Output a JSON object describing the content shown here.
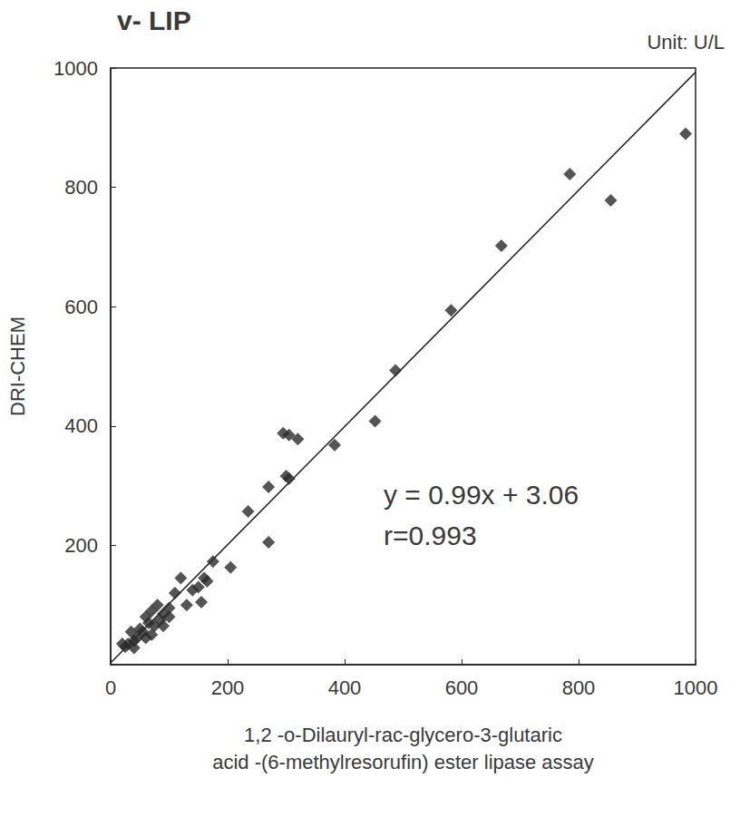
{
  "chart_data": {
    "type": "scatter",
    "title": "v- LIP",
    "subtitle": "Unit: U/L",
    "x_label": "1,2 -o-Dilauryl-rac-glycero-3-glutaric\nacid -(6-methylresorufin) ester lipase assay",
    "y_label": "DRI-CHEM",
    "annotations": [
      "y = 0.99x + 3.06",
      "r=0.993"
    ],
    "x": [
      983,
      785,
      855,
      668,
      582,
      487,
      452,
      383,
      320,
      305,
      295,
      300,
      305,
      270,
      235,
      270,
      205,
      175,
      160,
      155,
      150,
      130,
      120,
      110,
      100,
      90,
      85,
      80,
      75,
      70,
      65,
      60,
      55,
      50,
      45,
      40,
      35,
      30,
      25,
      40,
      20,
      60,
      70,
      90,
      100,
      140,
      165
    ],
    "values": [
      890,
      822,
      778,
      702,
      594,
      493,
      408,
      368,
      378,
      385,
      388,
      316,
      312,
      298,
      257,
      205,
      163,
      173,
      145,
      105,
      130,
      100,
      145,
      120,
      95,
      85,
      75,
      100,
      65,
      90,
      70,
      80,
      55,
      60,
      45,
      40,
      55,
      35,
      30,
      28,
      35,
      45,
      50,
      65,
      80,
      125,
      140
    ],
    "fit": {
      "slope": 0.99,
      "intercept": 3.06
    },
    "color": "#2b2b2b",
    "marker": "diamond",
    "xlim": [
      0,
      1000
    ],
    "xticks": [
      0,
      200,
      400,
      600,
      800,
      1000
    ],
    "ylim": [
      0,
      1000
    ],
    "yticks": [
      200,
      400,
      600,
      800,
      1000
    ],
    "grid": false
  }
}
